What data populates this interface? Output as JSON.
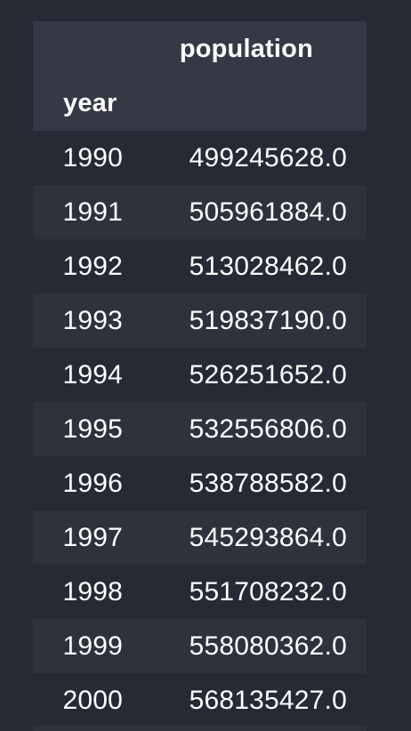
{
  "table": {
    "column_header": "population",
    "index_name": "year",
    "rows": [
      {
        "year": "1990",
        "population": "499245628.0"
      },
      {
        "year": "1991",
        "population": "505961884.0"
      },
      {
        "year": "1992",
        "population": "513028462.0"
      },
      {
        "year": "1993",
        "population": "519837190.0"
      },
      {
        "year": "1994",
        "population": "526251652.0"
      },
      {
        "year": "1995",
        "population": "532556806.0"
      },
      {
        "year": "1996",
        "population": "538788582.0"
      },
      {
        "year": "1997",
        "population": "545293864.0"
      },
      {
        "year": "1998",
        "population": "551708232.0"
      },
      {
        "year": "1999",
        "population": "558080362.0"
      },
      {
        "year": "2000",
        "population": "568135427.0"
      }
    ]
  },
  "colors": {
    "background": "#262a35",
    "header_band": "#353945",
    "alt_row": "#2e323d",
    "text": "#ffffff"
  }
}
